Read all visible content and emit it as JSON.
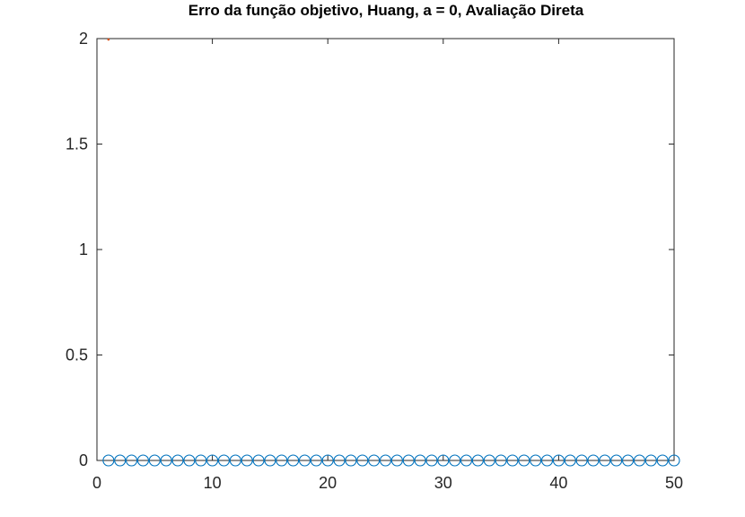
{
  "chart_data": {
    "type": "scatter",
    "title": "Erro da função objetivo, Huang, a = 0, Avaliação Direta",
    "xlabel": "",
    "ylabel": "",
    "xlim": [
      0,
      50
    ],
    "ylim": [
      0,
      2
    ],
    "xticks": [
      0,
      10,
      20,
      30,
      40,
      50
    ],
    "xtick_labels": [
      "0",
      "10",
      "20",
      "30",
      "40",
      "50"
    ],
    "yticks": [
      0,
      0.5,
      1,
      1.5,
      2
    ],
    "ytick_labels": [
      "0",
      "0.5",
      "1",
      "1.5",
      "2"
    ],
    "grid": false,
    "legend": "none",
    "series": [
      {
        "marker": "circle",
        "color": "#0072BD",
        "x": [
          1,
          2,
          3,
          4,
          5,
          6,
          7,
          8,
          9,
          10,
          11,
          12,
          13,
          14,
          15,
          16,
          17,
          18,
          19,
          20,
          21,
          22,
          23,
          24,
          25,
          26,
          27,
          28,
          29,
          30,
          31,
          32,
          33,
          34,
          35,
          36,
          37,
          38,
          39,
          40,
          41,
          42,
          43,
          44,
          45,
          46,
          47,
          48,
          49,
          50
        ],
        "y": [
          0,
          0,
          0,
          0,
          0,
          0,
          0,
          0,
          0,
          0,
          0,
          0,
          0,
          0,
          0,
          0,
          0,
          0,
          0,
          0,
          0,
          0,
          0,
          0,
          0,
          0,
          0,
          0,
          0,
          0,
          0,
          0,
          0,
          0,
          0,
          0,
          0,
          0,
          0,
          0,
          0,
          0,
          0,
          0,
          0,
          0,
          0,
          0,
          0,
          0
        ]
      },
      {
        "marker": "point",
        "color": "#D95319",
        "x": [
          1
        ],
        "y": [
          2
        ]
      }
    ]
  }
}
